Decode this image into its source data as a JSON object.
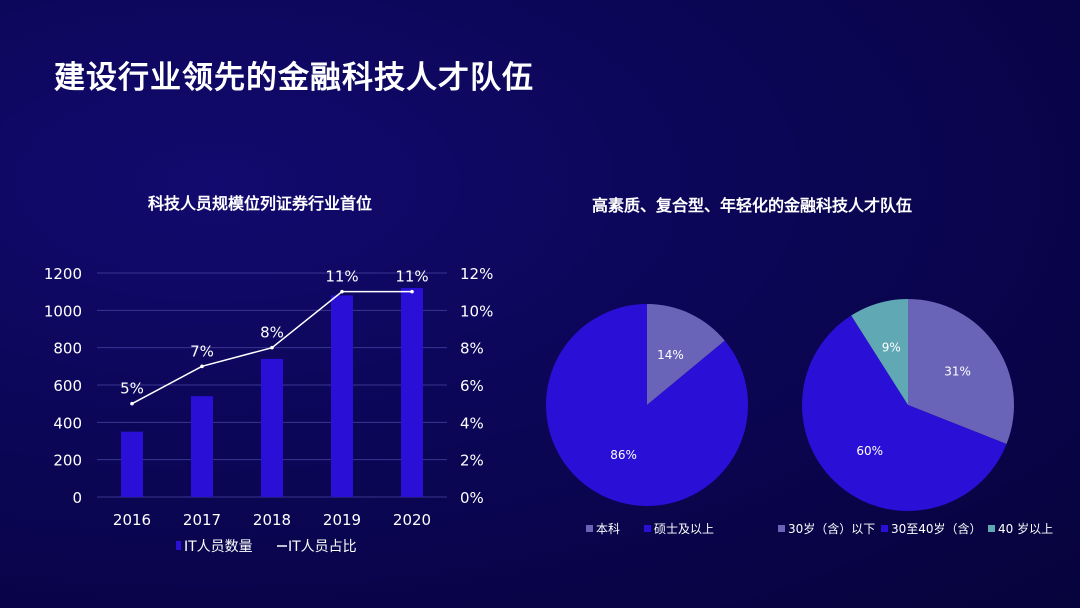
{
  "page_title": "建设行业领先的金融科技人才队伍",
  "chart_data": [
    {
      "type": "bar",
      "title": "科技人员规模位列证券行业首位",
      "categories": [
        "2016",
        "2017",
        "2018",
        "2019",
        "2020"
      ],
      "series": [
        {
          "name": "IT人员数量",
          "type": "bar",
          "axis": "left",
          "values": [
            350,
            540,
            740,
            1080,
            1120
          ],
          "color": "#2a0fd6"
        },
        {
          "name": "IT人员占比",
          "type": "line",
          "axis": "right",
          "values": [
            5,
            7,
            8,
            11,
            11
          ],
          "labels": [
            "5%",
            "7%",
            "8%",
            "11%",
            "11%"
          ],
          "color": "#ffffff"
        }
      ],
      "ylim_left": [
        0,
        1200
      ],
      "yticks_left": [
        "0",
        "200",
        "400",
        "600",
        "800",
        "1000",
        "1200"
      ],
      "ylim_right": [
        0,
        12
      ],
      "yticks_right": [
        "0%",
        "2%",
        "4%",
        "6%",
        "8%",
        "10%",
        "12%"
      ],
      "grid": true,
      "legend": "bottom"
    },
    {
      "type": "pie",
      "title": "高素质、复合型、年轻化的金融科技人才队伍",
      "labels": [
        "本科",
        "硕士及以上"
      ],
      "values": [
        14,
        86
      ],
      "value_labels": [
        "14%",
        "86%"
      ],
      "colors": [
        "#6a64b8",
        "#2a0fd6"
      ],
      "legend": "bottom"
    },
    {
      "type": "pie",
      "labels": [
        "30岁（含）以下",
        "30至40岁（含）",
        "40 岁以上"
      ],
      "values": [
        31,
        60,
        9
      ],
      "value_labels": [
        "31%",
        "60%",
        "9%"
      ],
      "colors": [
        "#6a64b8",
        "#2a0fd6",
        "#5fa8b4"
      ],
      "legend": "bottom"
    }
  ]
}
